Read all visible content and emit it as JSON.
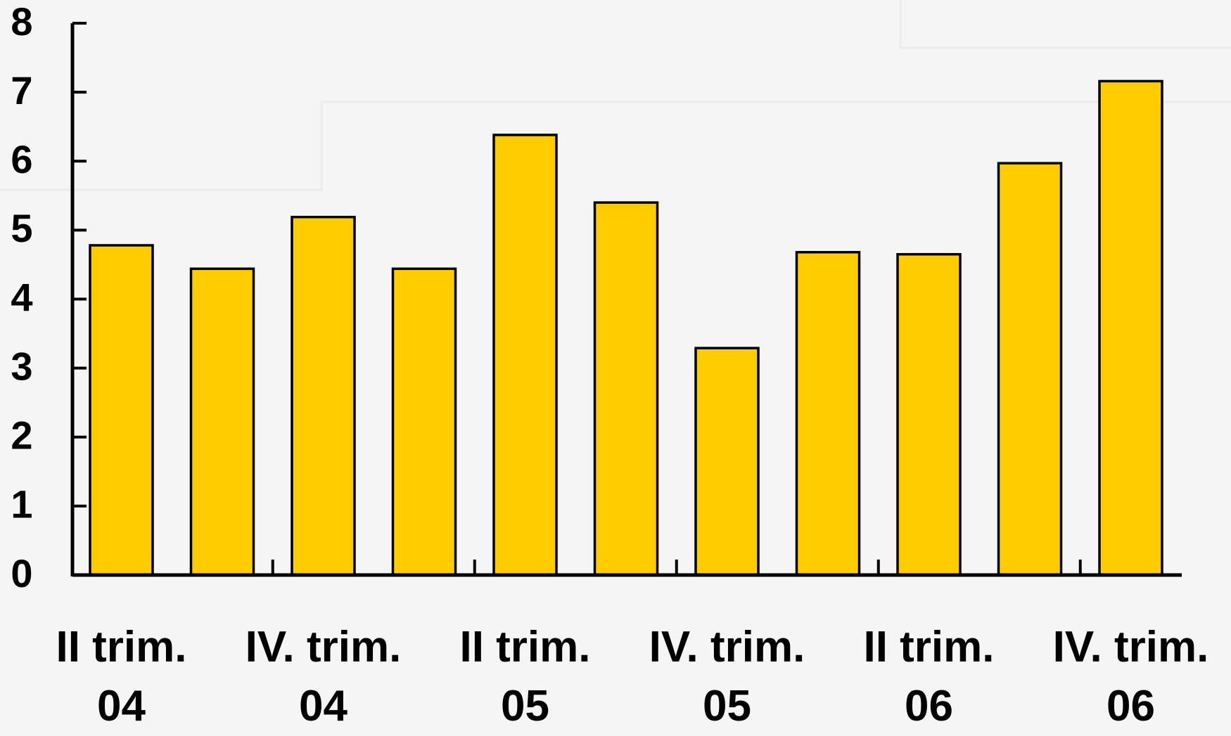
{
  "chart_data": {
    "type": "bar",
    "categories": [
      "II trim.\n04",
      null,
      "IV. trim.\n04",
      null,
      "II trim.\n05",
      null,
      "IV. trim.\n05",
      null,
      "II trim.\n06",
      null,
      "IV. trim.\n06"
    ],
    "values": [
      4.78,
      4.44,
      5.19,
      4.44,
      6.38,
      5.4,
      3.29,
      4.68,
      4.65,
      5.97,
      7.16
    ],
    "color": "#ffcc00",
    "ylim": [
      0,
      8
    ],
    "yticks": [
      0,
      1,
      2,
      3,
      4,
      5,
      6,
      7,
      8
    ],
    "grid": false
  }
}
